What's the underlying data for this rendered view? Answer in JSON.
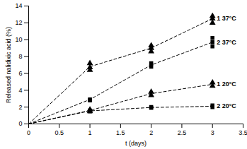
{
  "chart_data": {
    "type": "scatter",
    "x_label": "t (days)",
    "y_label": "Released nalidixic acid (%)",
    "xlim": [
      0,
      3.5
    ],
    "xticks": [
      0,
      0.5,
      1,
      1.5,
      2,
      2.5,
      3,
      3.5
    ],
    "ylim": [
      0,
      14
    ],
    "yticks": [
      0,
      2,
      4,
      6,
      8,
      10,
      12,
      14
    ],
    "grid": false,
    "series": [
      {
        "name": "1 37°C",
        "color": "#000000",
        "marker": "triangle",
        "line_style": "dashed",
        "x": [
          0,
          1,
          2,
          3
        ],
        "values": [
          0,
          6.8,
          9.0,
          12.5
        ],
        "points_x": [
          1,
          1,
          1,
          2,
          2,
          2,
          3,
          3,
          3
        ],
        "points_y": [
          6.4,
          6.7,
          7.2,
          8.6,
          9.0,
          9.3,
          12.0,
          12.5,
          12.8
        ]
      },
      {
        "name": "2 37°C",
        "color": "#000000",
        "marker": "square",
        "line_style": "dashed",
        "x": [
          0,
          1,
          2,
          3
        ],
        "values": [
          0,
          2.9,
          7.0,
          9.7
        ],
        "points_x": [
          1,
          1,
          2,
          2,
          3,
          3,
          3
        ],
        "points_y": [
          2.8,
          2.9,
          6.8,
          7.2,
          9.2,
          9.7,
          10.2
        ]
      },
      {
        "name": "1 20°C",
        "color": "#000000",
        "marker": "triangle",
        "line_style": "dashed",
        "x": [
          0,
          1,
          2,
          3
        ],
        "values": [
          0,
          1.6,
          3.6,
          4.7
        ],
        "points_x": [
          1,
          1,
          2,
          2,
          3,
          3
        ],
        "points_y": [
          1.5,
          1.7,
          3.4,
          3.8,
          4.5,
          4.9
        ]
      },
      {
        "name": "2 20°C",
        "color": "#000000",
        "marker": "square",
        "line_style": "dashed",
        "x": [
          0,
          1,
          2,
          3
        ],
        "values": [
          0,
          1.55,
          1.95,
          2.1
        ],
        "points_x": [
          1,
          1,
          2,
          2,
          3,
          3
        ],
        "points_y": [
          1.5,
          1.6,
          1.9,
          2.0,
          2.0,
          2.2
        ]
      }
    ]
  }
}
